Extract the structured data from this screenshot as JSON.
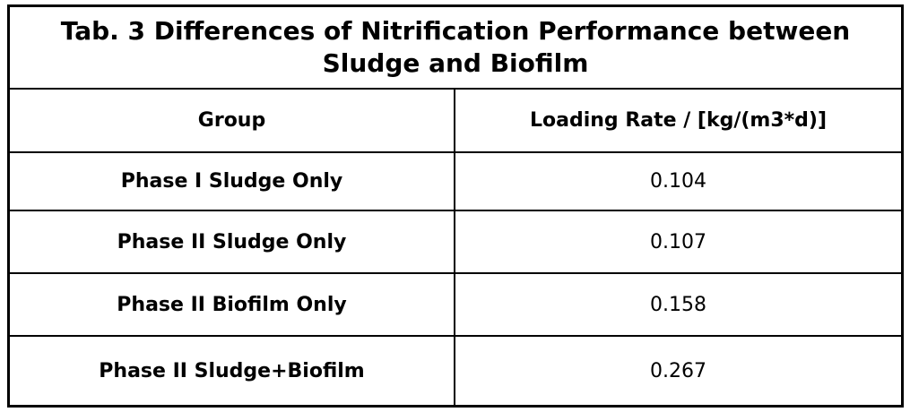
{
  "table": {
    "title_lines": [
      "Tab. 3 Differences of Nitrification Performance between",
      "Sludge and Biofilm"
    ],
    "columns": [
      "Group",
      "Loading Rate / [kg/(m3*d)]"
    ],
    "rows": [
      {
        "group": "Phase I Sludge Only",
        "value": "0.104"
      },
      {
        "group": "Phase II Sludge Only",
        "value": "0.107"
      },
      {
        "group": "Phase II Biofilm Only",
        "value": "0.158"
      },
      {
        "group": "Phase II Sludge+Biofilm",
        "value": "0.267"
      }
    ]
  },
  "colors": {
    "border": "#000000",
    "text": "#000000",
    "background": "#ffffff"
  },
  "chart_data": {
    "type": "table",
    "title": "Tab. 3 Differences of Nitrification Performance between Sludge and Biofilm",
    "columns": [
      "Group",
      "Loading Rate / [kg/(m3*d)]"
    ],
    "categories": [
      "Phase I Sludge Only",
      "Phase II Sludge Only",
      "Phase II Biofilm Only",
      "Phase II Sludge+Biofilm"
    ],
    "values": [
      0.104,
      0.107,
      0.158,
      0.267
    ],
    "value_label": "Loading Rate / [kg/(m3*d)]"
  }
}
